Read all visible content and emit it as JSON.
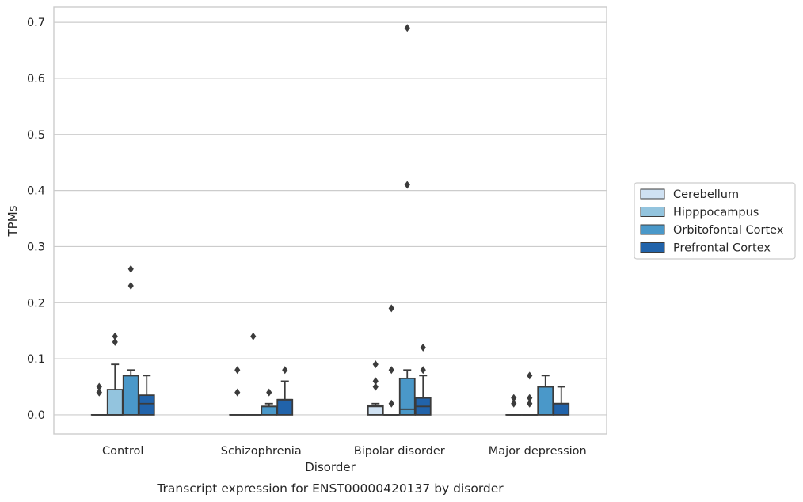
{
  "chart_data": {
    "type": "box",
    "caption": "Transcript expression for ENST00000420137 by disorder",
    "xlabel": "Disorder",
    "ylabel": "TPMs",
    "ylim": [
      -0.034,
      0.727
    ],
    "yticks": [
      0.0,
      0.1,
      0.2,
      0.3,
      0.4,
      0.5,
      0.6,
      0.7
    ],
    "ytick_labels": [
      "0.0",
      "0.1",
      "0.2",
      "0.3",
      "0.4",
      "0.5",
      "0.6",
      "0.7"
    ],
    "grid": "horizontal",
    "legend_position": "right",
    "categories": [
      "Control",
      "Schizophrenia",
      "Bipolar disorder",
      "Major depression"
    ],
    "series": [
      {
        "name": "Cerebellum",
        "color": "#cfe1f2",
        "boxes": [
          {
            "q1": 0,
            "median": 0,
            "q3": 0,
            "whisker_low": 0,
            "whisker_high": 0,
            "outliers": [
              0.04,
              0.05,
              0.04
            ]
          },
          {
            "q1": 0,
            "median": 0,
            "q3": 0,
            "whisker_low": 0,
            "whisker_high": 0,
            "outliers": [
              0.08,
              0.04
            ]
          },
          {
            "q1": 0,
            "median": 0.015,
            "q3": 0.017,
            "whisker_low": 0,
            "whisker_high": 0.02,
            "outliers": [
              0.09,
              0.06,
              0.05
            ]
          },
          {
            "q1": 0,
            "median": 0,
            "q3": 0,
            "whisker_low": 0,
            "whisker_high": 0,
            "outliers": [
              0.03,
              0.02
            ]
          }
        ]
      },
      {
        "name": "Hipppocampus",
        "color": "#93c4de",
        "boxes": [
          {
            "q1": 0,
            "median": 0,
            "q3": 0.045,
            "whisker_low": 0,
            "whisker_high": 0.09,
            "outliers": [
              0.14,
              0.13
            ]
          },
          {
            "q1": 0,
            "median": 0,
            "q3": 0,
            "whisker_low": 0,
            "whisker_high": 0,
            "outliers": [
              0.14
            ]
          },
          {
            "q1": 0,
            "median": 0,
            "q3": 0,
            "whisker_low": 0,
            "whisker_high": 0,
            "outliers": [
              0.19,
              0.08,
              0.02
            ]
          },
          {
            "q1": 0,
            "median": 0,
            "q3": 0,
            "whisker_low": 0,
            "whisker_high": 0,
            "outliers": [
              0.03,
              0.02,
              0.07
            ]
          }
        ]
      },
      {
        "name": "Orbitofontal Cortex",
        "color": "#4a98c9",
        "boxes": [
          {
            "q1": 0,
            "median": 0.07,
            "q3": 0.07,
            "whisker_low": 0,
            "whisker_high": 0.08,
            "outliers": [
              0.26,
              0.23
            ]
          },
          {
            "q1": 0,
            "median": 0.015,
            "q3": 0.015,
            "whisker_low": 0,
            "whisker_high": 0.02,
            "outliers": [
              0.04
            ]
          },
          {
            "q1": 0,
            "median": 0.01,
            "q3": 0.065,
            "whisker_low": 0,
            "whisker_high": 0.08,
            "outliers": [
              0.69,
              0.41
            ]
          },
          {
            "q1": 0,
            "median": 0.05,
            "q3": 0.05,
            "whisker_low": 0,
            "whisker_high": 0.07,
            "outliers": []
          }
        ]
      },
      {
        "name": "Prefrontal Cortex",
        "color": "#2163aa",
        "boxes": [
          {
            "q1": 0,
            "median": 0.02,
            "q3": 0.035,
            "whisker_low": 0,
            "whisker_high": 0.07,
            "outliers": []
          },
          {
            "q1": 0,
            "median": 0.027,
            "q3": 0.027,
            "whisker_low": 0,
            "whisker_high": 0.06,
            "outliers": [
              0.08
            ]
          },
          {
            "q1": 0,
            "median": 0.015,
            "q3": 0.03,
            "whisker_low": 0,
            "whisker_high": 0.07,
            "outliers": [
              0.12,
              0.08
            ]
          },
          {
            "q1": 0,
            "median": 0.02,
            "q3": 0.02,
            "whisker_low": 0,
            "whisker_high": 0.05,
            "outliers": []
          }
        ]
      }
    ]
  }
}
